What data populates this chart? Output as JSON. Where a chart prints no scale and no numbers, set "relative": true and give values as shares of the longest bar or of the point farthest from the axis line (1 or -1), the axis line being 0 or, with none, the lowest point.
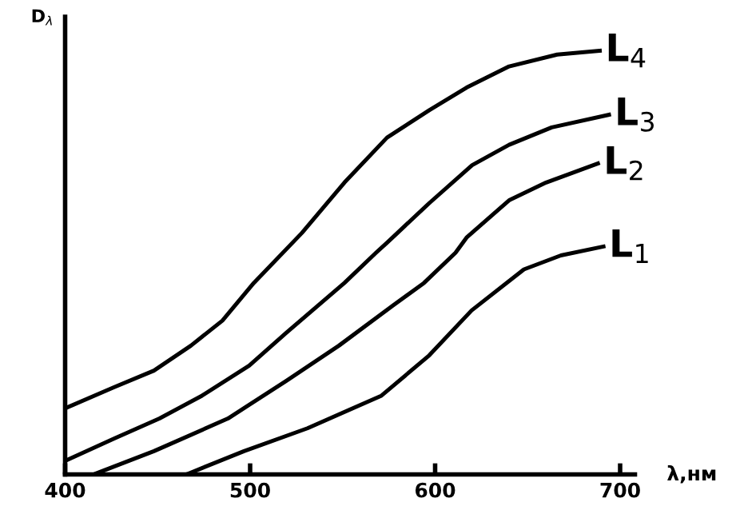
{
  "chart_data": {
    "type": "line",
    "relative": true,
    "xlabel": "λ,нм",
    "ylabel": "D$_{λ}$",
    "xlim": [
      400,
      708
    ],
    "xticks": [
      400,
      500,
      600,
      700
    ],
    "grid": false,
    "legend": false,
    "marker": "none",
    "line_style": "solid",
    "series": [
      {
        "name": "L$_{4}$",
        "color": "#000000",
        "x": [
          400,
          426.6,
          448,
          468,
          485,
          502,
          528,
          551,
          574,
          597,
          617,
          640,
          666,
          689
        ],
        "values": [
          0.156,
          0.206,
          0.245,
          0.304,
          0.363,
          0.452,
          0.57,
          0.689,
          0.795,
          0.86,
          0.913,
          0.963,
          0.991,
          1.0
        ]
      },
      {
        "name": "L$_{3}$",
        "color": "#000000",
        "x": [
          400,
          426.6,
          451,
          474,
          499.5,
          519.5,
          551,
          568,
          574,
          597,
          620,
          640,
          663,
          694
        ],
        "values": [
          0.032,
          0.085,
          0.132,
          0.186,
          0.257,
          0.334,
          0.452,
          0.523,
          0.547,
          0.641,
          0.73,
          0.778,
          0.819,
          0.849
        ]
      },
      {
        "name": "L$_{2}$",
        "color": "#000000",
        "x": [
          416.6,
          448,
          488,
          519.6,
          548,
          577,
          594,
          611,
          617,
          640,
          660,
          688
        ],
        "values": [
          0.002,
          0.055,
          0.132,
          0.221,
          0.304,
          0.398,
          0.452,
          0.523,
          0.559,
          0.647,
          0.689,
          0.734
        ]
      },
      {
        "name": "L$_{1}$",
        "color": "#000000",
        "x": [
          466.6,
          496.7,
          531,
          571,
          596.8,
          619.7,
          648,
          668,
          691
        ],
        "values": [
          0.002,
          0.055,
          0.109,
          0.186,
          0.281,
          0.387,
          0.484,
          0.517,
          0.538
        ]
      }
    ]
  }
}
